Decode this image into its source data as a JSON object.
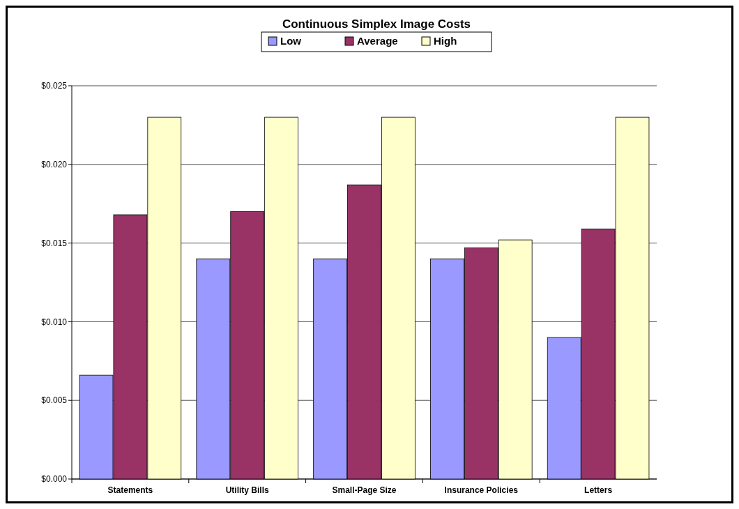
{
  "chart_data": {
    "type": "bar",
    "title": "Continuous Simplex Image Costs",
    "categories": [
      "Statements",
      "Utility Bills",
      "Small-Page Size",
      "Insurance Policies",
      "Letters"
    ],
    "series": [
      {
        "name": "Low",
        "color": "#9999ff",
        "values": [
          0.0066,
          0.014,
          0.014,
          0.014,
          0.009
        ]
      },
      {
        "name": "Average",
        "color": "#993366",
        "values": [
          0.0168,
          0.017,
          0.0187,
          0.0147,
          0.0159
        ]
      },
      {
        "name": "High",
        "color": "#ffffcc",
        "values": [
          0.023,
          0.023,
          0.023,
          0.0152,
          0.023
        ]
      }
    ],
    "ylim": [
      0,
      0.025
    ],
    "yticks": [
      {
        "value": 0,
        "label": "$0.000"
      },
      {
        "value": 0.005,
        "label": "$0.005"
      },
      {
        "value": 0.01,
        "label": "$0.010"
      },
      {
        "value": 0.015,
        "label": "$0.015"
      },
      {
        "value": 0.02,
        "label": "$0.020"
      },
      {
        "value": 0.025,
        "label": "$0.025"
      }
    ],
    "grid": "y",
    "legend": "top"
  }
}
